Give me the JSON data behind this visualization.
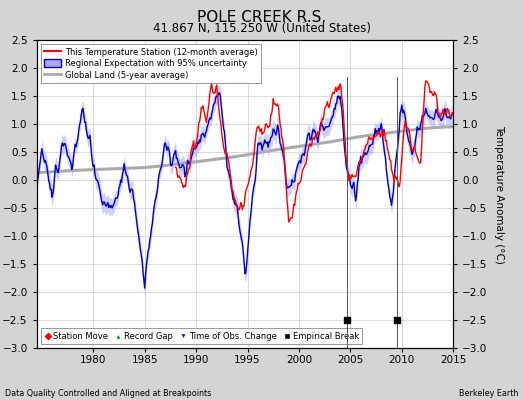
{
  "title": "POLE CREEK R.S.",
  "subtitle": "41.867 N, 115.250 W (United States)",
  "ylabel": "Temperature Anomaly (°C)",
  "xlabel_note": "Data Quality Controlled and Aligned at Breakpoints",
  "credit": "Berkeley Earth",
  "ylim": [
    -3,
    2.5
  ],
  "xlim": [
    1974.5,
    2015
  ],
  "xticks": [
    1980,
    1985,
    1990,
    1995,
    2000,
    2005,
    2010,
    2015
  ],
  "yticks_left": [
    -3,
    -2.5,
    -2,
    -1.5,
    -1,
    -0.5,
    0,
    0.5,
    1,
    1.5,
    2,
    2.5
  ],
  "yticks_right": [
    -3,
    -2.5,
    -2,
    -1.5,
    -1,
    -0.5,
    0,
    0.5,
    1,
    1.5,
    2,
    2.5
  ],
  "bg_color": "#d4d4d4",
  "plot_bg_color": "#ffffff",
  "empirical_breaks": [
    2004.7,
    2009.5
  ],
  "empirical_break_y": -2.5,
  "legend_labels": [
    "This Temperature Station (12-month average)",
    "Regional Expectation with 95% uncertainty",
    "Global Land (5-year average)"
  ],
  "legend2_labels": [
    "Station Move",
    "Record Gap",
    "Time of Obs. Change",
    "Empirical Break"
  ],
  "grid_color": "#cccccc",
  "line_color_station": "#ff0000",
  "line_color_regional": "#0000cc",
  "line_color_global": "#aaaaaa",
  "fill_color_uncertainty": "#aaaaee"
}
